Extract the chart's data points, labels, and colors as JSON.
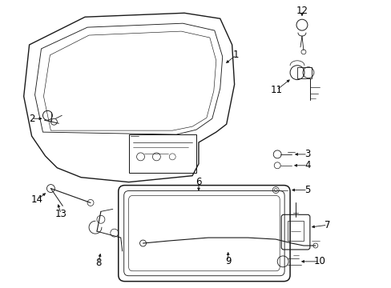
{
  "bg_color": "#ffffff",
  "line_color": "#1a1a1a",
  "label_color": "#000000",
  "lw": 0.9
}
